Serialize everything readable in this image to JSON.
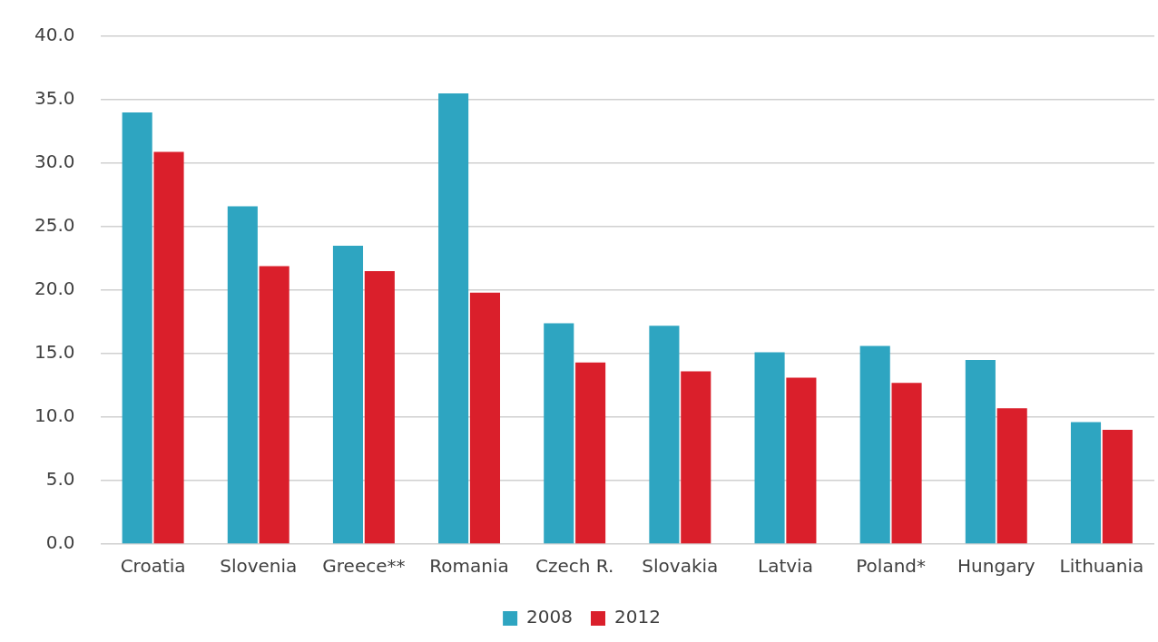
{
  "chart_data": {
    "type": "bar",
    "categories": [
      "Croatia",
      "Slovenia",
      "Greece**",
      "Romania",
      "Czech R.",
      "Slovakia",
      "Latvia",
      "Poland*",
      "Hungary",
      "Lithuania"
    ],
    "series": [
      {
        "name": "2008",
        "color": "#2ea5c1",
        "values": [
          34.0,
          26.6,
          23.5,
          35.5,
          17.4,
          17.2,
          15.1,
          15.6,
          14.5,
          9.6
        ]
      },
      {
        "name": "2012",
        "color": "#da1f2b",
        "values": [
          30.9,
          21.9,
          21.5,
          19.8,
          14.3,
          13.6,
          13.1,
          12.7,
          10.7,
          9.0
        ]
      }
    ],
    "ylim": [
      0,
      40
    ],
    "yticks": [
      {
        "value": 0,
        "label": "0.0"
      },
      {
        "value": 5,
        "label": "5.0"
      },
      {
        "value": 10,
        "label": "10.0"
      },
      {
        "value": 15,
        "label": "15.0"
      },
      {
        "value": 20,
        "label": "20.0"
      },
      {
        "value": 25,
        "label": "25.0"
      },
      {
        "value": 30,
        "label": "30.0"
      },
      {
        "value": 35,
        "label": "35.0"
      },
      {
        "value": 40,
        "label": "40.0"
      }
    ],
    "grid": "y",
    "legend": "bottom"
  }
}
